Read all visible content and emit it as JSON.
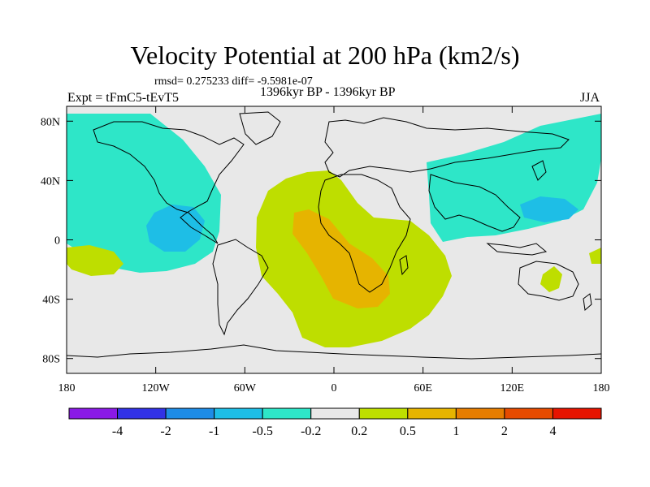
{
  "title": "Velocity Potential at 200 hPa (km2/s)",
  "stats": "rmsd= 0.275233 diff= -9.5981e-07",
  "experiment": "Expt = tFmC5-tEvT5",
  "period": "1396kyr BP - 1396kyr BP",
  "season": "JJA",
  "axes": {
    "x_ticks": [
      {
        "value": -180,
        "label": "180"
      },
      {
        "value": -120,
        "label": "120W"
      },
      {
        "value": -60,
        "label": "60W"
      },
      {
        "value": 0,
        "label": "0"
      },
      {
        "value": 60,
        "label": "60E"
      },
      {
        "value": 120,
        "label": "120E"
      },
      {
        "value": 180,
        "label": "180"
      }
    ],
    "y_ticks": [
      {
        "value": 80,
        "label": "80N"
      },
      {
        "value": 40,
        "label": "40N"
      },
      {
        "value": 0,
        "label": "0"
      },
      {
        "value": -40,
        "label": "40S"
      },
      {
        "value": -80,
        "label": "80S"
      }
    ],
    "lon_range": [
      -180,
      180
    ],
    "lat_range": [
      -90,
      90
    ]
  },
  "colorbar": {
    "colors": [
      "#8a1ae6",
      "#3232e6",
      "#1e8ce6",
      "#1ebee6",
      "#2ee6c8",
      "#e8e8e8",
      "#bede00",
      "#e6b400",
      "#e67d00",
      "#e64b00",
      "#e61400"
    ],
    "labels": [
      "-4",
      "-2",
      "-1",
      "-0.5",
      "-0.2",
      "0.2",
      "0.5",
      "1",
      "2",
      "4"
    ]
  },
  "map_colors": {
    "background": "#e8e8e8",
    "negative_02": "#2ee6c8",
    "negative_05": "#1ebee6",
    "positive_02": "#bede00",
    "positive_05": "#e6b400",
    "coastline": "#000000"
  }
}
